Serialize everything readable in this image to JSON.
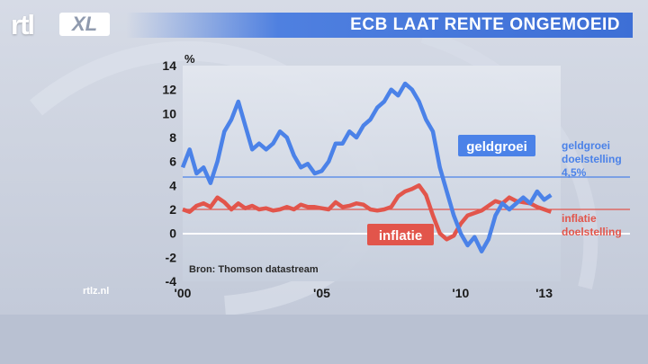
{
  "header": {
    "logo_rtl": "rtl",
    "logo_xl": "XL",
    "title": "ECB LAAT RENTE ONGEMOEID"
  },
  "footer": {
    "site": "rtlz.nl"
  },
  "colors": {
    "geldgroei": "#4b82e8",
    "inflatie": "#e2554b",
    "accent": "#3d6fd6"
  },
  "chart_data": {
    "type": "line",
    "title": "ECB LAAT RENTE ONGEMOEID",
    "ylabel": "%",
    "ylim": [
      -4,
      14
    ],
    "yticks": [
      "14",
      "12",
      "10",
      "8",
      "6",
      "4",
      "2",
      "0",
      "-2",
      "-4"
    ],
    "xlim": [
      2000.0,
      2013.5
    ],
    "xticks": [
      {
        "x": 2000,
        "label": "'00"
      },
      {
        "x": 2005,
        "label": "'05"
      },
      {
        "x": 2010,
        "label": "'10"
      },
      {
        "x": 2013,
        "label": "'13"
      }
    ],
    "source": "Bron: Thomson datastream",
    "series": [
      {
        "name": "geldgroei",
        "color": "#4b82e8",
        "x": [
          2000.0,
          2000.25,
          2000.5,
          2000.75,
          2001.0,
          2001.25,
          2001.5,
          2001.75,
          2002.0,
          2002.25,
          2002.5,
          2002.75,
          2003.0,
          2003.25,
          2003.5,
          2003.75,
          2004.0,
          2004.25,
          2004.5,
          2004.75,
          2005.0,
          2005.25,
          2005.5,
          2005.75,
          2006.0,
          2006.25,
          2006.5,
          2006.75,
          2007.0,
          2007.25,
          2007.5,
          2007.75,
          2008.0,
          2008.25,
          2008.5,
          2008.75,
          2009.0,
          2009.25,
          2009.5,
          2009.75,
          2010.0,
          2010.25,
          2010.5,
          2010.75,
          2011.0,
          2011.25,
          2011.5,
          2011.75,
          2012.0,
          2012.25,
          2012.5,
          2012.75,
          2013.0,
          2013.25
        ],
        "y": [
          5.5,
          7.0,
          5.0,
          5.5,
          4.2,
          6.0,
          8.5,
          9.5,
          11.0,
          9.0,
          7.0,
          7.5,
          7.0,
          7.5,
          8.5,
          8.0,
          6.5,
          5.5,
          5.8,
          5.0,
          5.2,
          6.0,
          7.5,
          7.5,
          8.5,
          8.0,
          9.0,
          9.5,
          10.5,
          11.0,
          12.0,
          11.5,
          12.5,
          12.0,
          11.0,
          9.5,
          8.5,
          5.5,
          3.5,
          1.5,
          0.0,
          -1.0,
          -0.3,
          -1.5,
          -0.5,
          1.5,
          2.5,
          2.0,
          2.5,
          3.0,
          2.5,
          3.5,
          2.8,
          3.2
        ]
      },
      {
        "name": "inflatie",
        "color": "#e2554b",
        "x": [
          2000.0,
          2000.25,
          2000.5,
          2000.75,
          2001.0,
          2001.25,
          2001.5,
          2001.75,
          2002.0,
          2002.25,
          2002.5,
          2002.75,
          2003.0,
          2003.25,
          2003.5,
          2003.75,
          2004.0,
          2004.25,
          2004.5,
          2004.75,
          2005.0,
          2005.25,
          2005.5,
          2005.75,
          2006.0,
          2006.25,
          2006.5,
          2006.75,
          2007.0,
          2007.25,
          2007.5,
          2007.75,
          2008.0,
          2008.25,
          2008.5,
          2008.75,
          2009.0,
          2009.25,
          2009.5,
          2009.75,
          2010.0,
          2010.25,
          2010.5,
          2010.75,
          2011.0,
          2011.25,
          2011.5,
          2011.75,
          2012.0,
          2012.25,
          2012.5,
          2012.75,
          2013.0,
          2013.25
        ],
        "y": [
          2.0,
          1.8,
          2.3,
          2.5,
          2.2,
          3.0,
          2.6,
          2.0,
          2.5,
          2.1,
          2.3,
          2.0,
          2.1,
          1.9,
          2.0,
          2.2,
          2.0,
          2.4,
          2.2,
          2.2,
          2.1,
          2.0,
          2.6,
          2.2,
          2.3,
          2.5,
          2.4,
          2.0,
          1.9,
          2.0,
          2.2,
          3.1,
          3.5,
          3.7,
          4.0,
          3.2,
          1.5,
          0.0,
          -0.5,
          -0.2,
          0.8,
          1.5,
          1.7,
          1.9,
          2.3,
          2.7,
          2.5,
          3.0,
          2.7,
          2.6,
          2.5,
          2.2,
          2.0,
          1.8
        ]
      }
    ],
    "reference_lines": [
      {
        "y": 4.5,
        "color": "#4b82e8",
        "labels": [
          "geldgroei",
          "doelstelling",
          "4,5%"
        ]
      },
      {
        "y": 2.0,
        "color": "#e2554b",
        "labels": [
          "inflatie",
          "doelstelling"
        ]
      }
    ],
    "callouts": [
      {
        "label": "geldgroei",
        "series": "geldgroei",
        "x": 2010.3,
        "y": 7.2
      },
      {
        "label": "inflatie",
        "series": "inflatie",
        "x": 2008.0,
        "y": 0.0
      }
    ]
  }
}
